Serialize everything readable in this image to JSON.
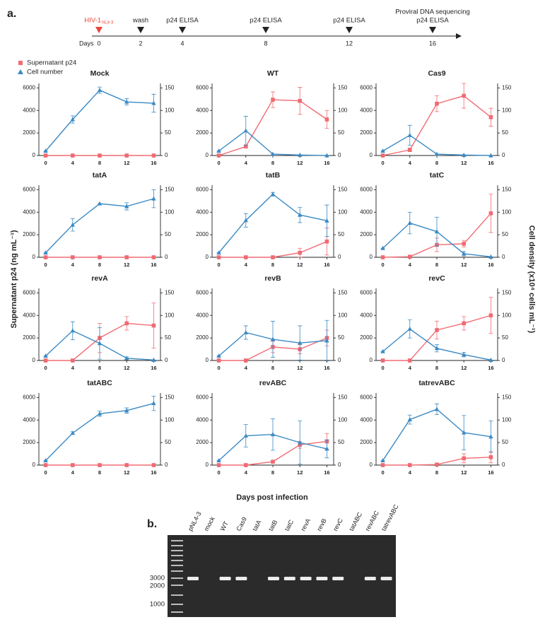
{
  "figure": {
    "ylabel": "Supernatant p24 (ng mL⁻¹)",
    "y2label": "Cell density (x10⁴ cells mL⁻¹)",
    "xlabel": "Days post infection"
  },
  "timeline": {
    "panel": "a.",
    "axis_label": "Days",
    "days": [
      0,
      2,
      4,
      8,
      12,
      16
    ],
    "color_first": "#e8453c",
    "events": [
      {
        "day": 0,
        "lines": [
          "HIV-1"
        ],
        "sub": "NL4-3"
      },
      {
        "day": 2,
        "lines": [
          "wash"
        ]
      },
      {
        "day": 4,
        "lines": [
          "p24 ELISA"
        ]
      },
      {
        "day": 8,
        "lines": [
          "p24 ELISA"
        ]
      },
      {
        "day": 12,
        "lines": [
          "p24 ELISA"
        ]
      },
      {
        "day": 16,
        "lines": [
          "Proviral DNA sequencing",
          "p24 ELISA"
        ]
      }
    ]
  },
  "chart_data": [
    {
      "type": "line",
      "title": "Mock",
      "x": [
        0,
        4,
        8,
        12,
        16
      ],
      "xlim": [
        -1,
        17
      ],
      "xticks": [
        0,
        4,
        8,
        12,
        16
      ],
      "ylim": [
        0,
        6400
      ],
      "yticks": [
        0,
        2000,
        4000,
        6000
      ],
      "y2lim": [
        0,
        160
      ],
      "y2ticks": [
        0,
        50,
        100,
        150
      ],
      "series": [
        {
          "name": "Supernatant p24",
          "color": "#f06b73",
          "marker": "square",
          "values": [
            0,
            0,
            0,
            0,
            0
          ],
          "errors": [
            0,
            0,
            0,
            0,
            0
          ]
        },
        {
          "name": "Cell number",
          "color": "#3b8ac4",
          "marker": "triangle",
          "axis": "y2",
          "values": [
            10,
            80,
            145,
            119,
            116
          ],
          "errors": [
            0,
            8,
            7,
            7,
            20
          ]
        }
      ]
    },
    {
      "type": "line",
      "title": "WT",
      "x": [
        0,
        4,
        8,
        12,
        16
      ],
      "xlim": [
        -1,
        17
      ],
      "xticks": [
        0,
        4,
        8,
        12,
        16
      ],
      "ylim": [
        0,
        6400
      ],
      "yticks": [
        0,
        2000,
        4000,
        6000
      ],
      "y2lim": [
        0,
        160
      ],
      "y2ticks": [
        0,
        50,
        100,
        150
      ],
      "series": [
        {
          "color": "#f06b73",
          "marker": "square",
          "values": [
            0,
            800,
            4950,
            4850,
            3200
          ],
          "errors": [
            0,
            100,
            700,
            1200,
            800
          ]
        },
        {
          "color": "#3b8ac4",
          "marker": "triangle",
          "axis": "y2",
          "values": [
            10,
            55,
            3,
            1,
            0
          ],
          "errors": [
            0,
            32,
            0,
            0,
            0
          ]
        }
      ]
    },
    {
      "type": "line",
      "title": "Cas9",
      "x": [
        0,
        4,
        8,
        12,
        16
      ],
      "xlim": [
        -1,
        17
      ],
      "xticks": [
        0,
        4,
        8,
        12,
        16
      ],
      "ylim": [
        0,
        6400
      ],
      "yticks": [
        0,
        2000,
        4000,
        6000
      ],
      "y2lim": [
        0,
        160
      ],
      "y2ticks": [
        0,
        50,
        100,
        150
      ],
      "series": [
        {
          "color": "#f06b73",
          "marker": "square",
          "values": [
            0,
            500,
            4600,
            5300,
            3400
          ],
          "errors": [
            0,
            150,
            700,
            1100,
            800
          ]
        },
        {
          "color": "#3b8ac4",
          "marker": "triangle",
          "axis": "y2",
          "values": [
            10,
            45,
            3,
            1,
            0
          ],
          "errors": [
            0,
            22,
            0,
            0,
            0
          ]
        }
      ]
    },
    {
      "type": "line",
      "title": "tatA",
      "x": [
        0,
        4,
        8,
        12,
        16
      ],
      "xlim": [
        -1,
        17
      ],
      "xticks": [
        0,
        4,
        8,
        12,
        16
      ],
      "ylim": [
        0,
        6400
      ],
      "yticks": [
        0,
        2000,
        4000,
        6000
      ],
      "y2lim": [
        0,
        160
      ],
      "y2ticks": [
        0,
        50,
        100,
        150
      ],
      "series": [
        {
          "color": "#f06b73",
          "marker": "square",
          "values": [
            0,
            0,
            0,
            0,
            0
          ],
          "errors": [
            0,
            0,
            0,
            0,
            0
          ]
        },
        {
          "color": "#3b8ac4",
          "marker": "triangle",
          "axis": "y2",
          "values": [
            10,
            72,
            119,
            113,
            130
          ],
          "errors": [
            0,
            14,
            0,
            8,
            20
          ]
        }
      ]
    },
    {
      "type": "line",
      "title": "tatB",
      "x": [
        0,
        4,
        8,
        12,
        16
      ],
      "xlim": [
        -1,
        17
      ],
      "xticks": [
        0,
        4,
        8,
        12,
        16
      ],
      "ylim": [
        0,
        6400
      ],
      "yticks": [
        0,
        2000,
        4000,
        6000
      ],
      "y2lim": [
        0,
        160
      ],
      "y2ticks": [
        0,
        50,
        100,
        150
      ],
      "series": [
        {
          "color": "#f06b73",
          "marker": "square",
          "values": [
            0,
            0,
            0,
            400,
            1400
          ],
          "errors": [
            0,
            0,
            0,
            400,
            1200
          ]
        },
        {
          "color": "#3b8ac4",
          "marker": "triangle",
          "axis": "y2",
          "values": [
            10,
            82,
            140,
            94,
            81
          ],
          "errors": [
            0,
            15,
            4,
            17,
            35
          ]
        }
      ]
    },
    {
      "type": "line",
      "title": "tatC",
      "x": [
        0,
        4,
        8,
        12,
        16
      ],
      "xlim": [
        -1,
        17
      ],
      "xticks": [
        0,
        4,
        8,
        12,
        16
      ],
      "ylim": [
        0,
        6400
      ],
      "yticks": [
        0,
        2000,
        4000,
        6000
      ],
      "y2lim": [
        0,
        160
      ],
      "y2ticks": [
        0,
        50,
        100,
        150
      ],
      "series": [
        {
          "color": "#f06b73",
          "marker": "square",
          "values": [
            0,
            50,
            1100,
            1200,
            3900
          ],
          "errors": [
            0,
            0,
            600,
            300,
            1700
          ]
        },
        {
          "color": "#3b8ac4",
          "marker": "triangle",
          "axis": "y2",
          "values": [
            20,
            76,
            57,
            8,
            1
          ],
          "errors": [
            0,
            24,
            32,
            5,
            0
          ]
        }
      ]
    },
    {
      "type": "line",
      "title": "revA",
      "x": [
        0,
        4,
        8,
        12,
        16
      ],
      "xlim": [
        -1,
        17
      ],
      "xticks": [
        0,
        4,
        8,
        12,
        16
      ],
      "ylim": [
        0,
        6400
      ],
      "yticks": [
        0,
        2000,
        4000,
        6000
      ],
      "y2lim": [
        0,
        160
      ],
      "y2ticks": [
        0,
        50,
        100,
        150
      ],
      "series": [
        {
          "color": "#f06b73",
          "marker": "square",
          "values": [
            0,
            0,
            2000,
            3300,
            3100
          ],
          "errors": [
            0,
            0,
            1300,
            600,
            2000
          ]
        },
        {
          "color": "#3b8ac4",
          "marker": "triangle",
          "axis": "y2",
          "values": [
            10,
            66,
            38,
            5,
            1
          ],
          "errors": [
            0,
            20,
            35,
            3,
            0
          ]
        }
      ]
    },
    {
      "type": "line",
      "title": "revB",
      "x": [
        0,
        4,
        8,
        12,
        16
      ],
      "xlim": [
        -1,
        17
      ],
      "xticks": [
        0,
        4,
        8,
        12,
        16
      ],
      "ylim": [
        0,
        6400
      ],
      "yticks": [
        0,
        2000,
        4000,
        6000
      ],
      "y2lim": [
        0,
        160
      ],
      "y2ticks": [
        0,
        50,
        100,
        150
      ],
      "series": [
        {
          "color": "#f06b73",
          "marker": "square",
          "values": [
            0,
            0,
            1200,
            1000,
            2000
          ],
          "errors": [
            0,
            0,
            500,
            400,
            700
          ]
        },
        {
          "color": "#3b8ac4",
          "marker": "triangle",
          "axis": "y2",
          "values": [
            10,
            62,
            47,
            39,
            44
          ],
          "errors": [
            0,
            15,
            40,
            38,
            45
          ]
        }
      ]
    },
    {
      "type": "line",
      "title": "revC",
      "x": [
        0,
        4,
        8,
        12,
        16
      ],
      "xlim": [
        -1,
        17
      ],
      "xticks": [
        0,
        4,
        8,
        12,
        16
      ],
      "ylim": [
        0,
        6400
      ],
      "yticks": [
        0,
        2000,
        4000,
        6000
      ],
      "y2lim": [
        0,
        160
      ],
      "y2ticks": [
        0,
        50,
        100,
        150
      ],
      "series": [
        {
          "color": "#f06b73",
          "marker": "square",
          "values": [
            0,
            0,
            2700,
            3300,
            4000
          ],
          "errors": [
            0,
            0,
            800,
            600,
            1600
          ]
        },
        {
          "color": "#3b8ac4",
          "marker": "triangle",
          "axis": "y2",
          "values": [
            20,
            70,
            27,
            13,
            1
          ],
          "errors": [
            0,
            20,
            8,
            5,
            0
          ]
        }
      ]
    },
    {
      "type": "line",
      "title": "tatABC",
      "x": [
        0,
        4,
        8,
        12,
        16
      ],
      "xlim": [
        -1,
        17
      ],
      "xticks": [
        0,
        4,
        8,
        12,
        16
      ],
      "ylim": [
        0,
        6400
      ],
      "yticks": [
        0,
        2000,
        4000,
        6000
      ],
      "y2lim": [
        0,
        160
      ],
      "y2ticks": [
        0,
        50,
        100,
        150
      ],
      "series": [
        {
          "color": "#f06b73",
          "marker": "square",
          "values": [
            0,
            0,
            0,
            0,
            0
          ],
          "errors": [
            0,
            0,
            0,
            0,
            0
          ]
        },
        {
          "color": "#3b8ac4",
          "marker": "triangle",
          "axis": "y2",
          "values": [
            10,
            71,
            114,
            121,
            137
          ],
          "errors": [
            0,
            3,
            6,
            6,
            16
          ]
        }
      ]
    },
    {
      "type": "line",
      "title": "revABC",
      "x": [
        0,
        4,
        8,
        12,
        16
      ],
      "xlim": [
        -1,
        17
      ],
      "xticks": [
        0,
        4,
        8,
        12,
        16
      ],
      "ylim": [
        0,
        6400
      ],
      "yticks": [
        0,
        2000,
        4000,
        6000
      ],
      "y2lim": [
        0,
        160
      ],
      "y2ticks": [
        0,
        50,
        100,
        150
      ],
      "series": [
        {
          "color": "#f06b73",
          "marker": "square",
          "values": [
            0,
            0,
            300,
            1800,
            2100
          ],
          "errors": [
            0,
            0,
            0,
            300,
            700
          ]
        },
        {
          "color": "#3b8ac4",
          "marker": "triangle",
          "axis": "y2",
          "values": [
            10,
            65,
            68,
            50,
            36
          ],
          "errors": [
            0,
            25,
            35,
            48,
            20
          ]
        }
      ]
    },
    {
      "type": "line",
      "title": "tatrevABC",
      "x": [
        0,
        4,
        8,
        12,
        16
      ],
      "xlim": [
        -1,
        17
      ],
      "xticks": [
        0,
        4,
        8,
        12,
        16
      ],
      "ylim": [
        0,
        6400
      ],
      "yticks": [
        0,
        2000,
        4000,
        6000
      ],
      "y2lim": [
        0,
        160
      ],
      "y2ticks": [
        0,
        50,
        100,
        150
      ],
      "series": [
        {
          "color": "#f06b73",
          "marker": "square",
          "values": [
            0,
            0,
            50,
            600,
            700
          ],
          "errors": [
            0,
            0,
            0,
            400,
            500
          ]
        },
        {
          "color": "#3b8ac4",
          "marker": "triangle",
          "axis": "y2",
          "values": [
            10,
            101,
            124,
            72,
            63
          ],
          "errors": [
            0,
            10,
            12,
            38,
            35
          ]
        }
      ]
    }
  ],
  "gel": {
    "panel": "b.",
    "lanes": [
      "pNL4-3",
      "mock",
      "WT",
      "Cas9",
      "tatA",
      "tatB",
      "tatC",
      "revA",
      "revB",
      "revC",
      "tatABC",
      "revABC",
      "tatrevABC"
    ],
    "markers": [
      3000,
      2000,
      1000
    ]
  }
}
